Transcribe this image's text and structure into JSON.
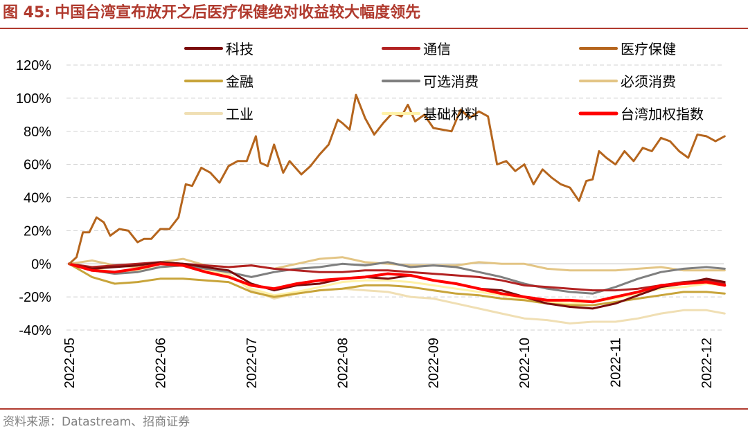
{
  "figure": {
    "label": "图 45:",
    "title": "中国台湾宣布放开之后医疗保健绝对收益较大幅度领先",
    "source": "资料来源：Datastream、招商证券"
  },
  "chart_data": {
    "type": "line",
    "title": "中国台湾宣布放开之后医疗保健绝对收益较大幅度领先",
    "xlabel": "",
    "ylabel": "",
    "ylim": [
      -40,
      120
    ],
    "yticks": [
      -40,
      -20,
      0,
      20,
      40,
      60,
      80,
      100,
      120
    ],
    "ytick_labels": [
      "-40%",
      "-20%",
      "0%",
      "20%",
      "40%",
      "60%",
      "80%",
      "100%",
      "120%"
    ],
    "xlim": [
      0,
      7.3
    ],
    "x_ticks": [
      0,
      1,
      2,
      3,
      4,
      5,
      6,
      7
    ],
    "x_tick_labels": [
      "2022-05",
      "2022-06",
      "2022-07",
      "2022-08",
      "2022-09",
      "2022-10",
      "2022-11",
      "2022-12"
    ],
    "grid": "horizontal-dashed",
    "legend": "top",
    "series": [
      {
        "name": "科技",
        "color": "#7a0c0c",
        "width": 3,
        "x": [
          0,
          0.25,
          0.5,
          0.75,
          1,
          1.25,
          1.5,
          1.75,
          2,
          2.25,
          2.5,
          2.75,
          3,
          3.25,
          3.5,
          3.75,
          4,
          4.25,
          4.5,
          4.75,
          5,
          5.25,
          5.5,
          5.75,
          6,
          6.25,
          6.5,
          6.75,
          7,
          7.2
        ],
        "values": [
          0,
          -3,
          -2,
          -1,
          1,
          0,
          -2,
          -4,
          -12,
          -16,
          -13,
          -12,
          -9,
          -8,
          -9,
          -7,
          -10,
          -12,
          -15,
          -16,
          -20,
          -24,
          -26,
          -27,
          -24,
          -19,
          -14,
          -12,
          -9,
          -11
        ]
      },
      {
        "name": "通信",
        "color": "#b22222",
        "width": 3,
        "x": [
          0,
          0.25,
          0.5,
          0.75,
          1,
          1.25,
          1.5,
          1.75,
          2,
          2.25,
          2.5,
          2.75,
          3,
          3.25,
          3.5,
          3.75,
          4,
          4.25,
          4.5,
          4.75,
          5,
          5.25,
          5.5,
          5.75,
          6,
          6.25,
          6.5,
          6.75,
          7,
          7.2
        ],
        "values": [
          0,
          -2,
          -1,
          0,
          1,
          0,
          -1,
          -2,
          -1,
          -3,
          -4,
          -5,
          -5,
          -4,
          -4,
          -5,
          -6,
          -7,
          -8,
          -10,
          -13,
          -14,
          -15,
          -16,
          -16,
          -15,
          -13,
          -11,
          -10,
          -12
        ]
      },
      {
        "name": "医疗保健",
        "color": "#b5651d",
        "width": 3,
        "x": [
          0,
          0.08,
          0.15,
          0.22,
          0.3,
          0.38,
          0.45,
          0.55,
          0.65,
          0.75,
          0.82,
          0.9,
          1,
          1.1,
          1.2,
          1.28,
          1.35,
          1.45,
          1.55,
          1.65,
          1.75,
          1.85,
          1.95,
          2.05,
          2.1,
          2.18,
          2.25,
          2.35,
          2.42,
          2.55,
          2.65,
          2.75,
          2.85,
          2.95,
          3,
          3.08,
          3.15,
          3.25,
          3.35,
          3.45,
          3.55,
          3.65,
          3.72,
          3.8,
          3.9,
          4,
          4.1,
          4.2,
          4.3,
          4.4,
          4.5,
          4.6,
          4.7,
          4.8,
          4.9,
          5,
          5.1,
          5.2,
          5.3,
          5.4,
          5.5,
          5.6,
          5.68,
          5.75,
          5.82,
          5.9,
          6,
          6.1,
          6.2,
          6.3,
          6.4,
          6.5,
          6.6,
          6.7,
          6.8,
          6.9,
          7,
          7.1,
          7.2
        ],
        "values": [
          0,
          4,
          19,
          19,
          28,
          25,
          17,
          21,
          20,
          13,
          15,
          15,
          21,
          21,
          28,
          48,
          47,
          58,
          55,
          49,
          59,
          62,
          62,
          77,
          61,
          59,
          72,
          55,
          62,
          54,
          59,
          66,
          72,
          87,
          85,
          81,
          102,
          88,
          78,
          85,
          91,
          89,
          96,
          86,
          90,
          82,
          81,
          80,
          93,
          88,
          92,
          89,
          60,
          62,
          56,
          60,
          48,
          57,
          52,
          48,
          46,
          38,
          50,
          51,
          68,
          64,
          60,
          68,
          62,
          70,
          68,
          76,
          74,
          68,
          64,
          78,
          77,
          74,
          77
        ]
      },
      {
        "name": "金融",
        "color": "#c8a43a",
        "width": 3,
        "x": [
          0,
          0.25,
          0.5,
          0.75,
          1,
          1.25,
          1.5,
          1.75,
          2,
          2.25,
          2.5,
          2.75,
          3,
          3.25,
          3.5,
          3.75,
          4,
          4.25,
          4.5,
          4.75,
          5,
          5.25,
          5.5,
          5.75,
          6,
          6.25,
          6.5,
          6.75,
          7,
          7.2
        ],
        "values": [
          0,
          -8,
          -12,
          -11,
          -9,
          -9,
          -10,
          -11,
          -17,
          -20,
          -18,
          -16,
          -15,
          -13,
          -13,
          -14,
          -16,
          -18,
          -19,
          -21,
          -22,
          -24,
          -25,
          -25,
          -23,
          -21,
          -19,
          -17,
          -17,
          -18
        ]
      },
      {
        "name": "可选消费",
        "color": "#7f7f7f",
        "width": 3,
        "x": [
          0,
          0.25,
          0.5,
          0.75,
          1,
          1.25,
          1.5,
          1.75,
          2,
          2.25,
          2.5,
          2.75,
          3,
          3.25,
          3.5,
          3.75,
          4,
          4.25,
          4.5,
          4.75,
          5,
          5.25,
          5.5,
          5.75,
          6,
          6.25,
          6.5,
          6.75,
          7,
          7.2
        ],
        "values": [
          0,
          -4,
          -6,
          -5,
          -2,
          -1,
          -3,
          -5,
          -8,
          -5,
          -3,
          -2,
          0,
          -1,
          1,
          -2,
          -1,
          -2,
          -5,
          -8,
          -12,
          -15,
          -17,
          -18,
          -14,
          -9,
          -5,
          -3,
          -2,
          -3
        ]
      },
      {
        "name": "必须消费",
        "color": "#e3c585",
        "width": 3,
        "x": [
          0,
          0.25,
          0.5,
          0.75,
          1,
          1.25,
          1.5,
          1.75,
          2,
          2.25,
          2.5,
          2.75,
          3,
          3.25,
          3.5,
          3.75,
          4,
          4.25,
          4.5,
          4.75,
          5,
          5.25,
          5.5,
          5.75,
          6,
          6.25,
          6.5,
          6.75,
          7,
          7.2
        ],
        "values": [
          0,
          2,
          -1,
          -2,
          1,
          3,
          -1,
          -2,
          -1,
          -3,
          0,
          3,
          4,
          1,
          0,
          -1,
          -1,
          -1,
          1,
          0,
          0,
          -3,
          -4,
          -4,
          -4,
          -3,
          -2,
          -4,
          -4,
          -4
        ]
      },
      {
        "name": "工业",
        "color": "#f0dfb4",
        "width": 3,
        "x": [
          0,
          0.25,
          0.5,
          0.75,
          1,
          1.25,
          1.5,
          1.75,
          2,
          2.25,
          2.5,
          2.75,
          3,
          3.25,
          3.5,
          3.75,
          4,
          4.25,
          4.5,
          4.75,
          5,
          5.25,
          5.5,
          5.75,
          6,
          6.25,
          6.5,
          6.75,
          7,
          7.2
        ],
        "values": [
          0,
          -2,
          -6,
          -4,
          -2,
          -1,
          -4,
          -6,
          -16,
          -21,
          -18,
          -16,
          -15,
          -16,
          -17,
          -20,
          -21,
          -24,
          -27,
          -30,
          -33,
          -34,
          -36,
          -35,
          -35,
          -33,
          -30,
          -28,
          -28,
          -30
        ]
      },
      {
        "name": "基础材料",
        "color": "#fff2a8",
        "width": 3,
        "x": [
          0,
          0.25,
          0.5,
          0.75,
          1,
          1.25,
          1.5,
          1.75,
          2,
          2.25,
          2.5,
          2.75,
          3,
          3.25,
          3.5,
          3.75,
          4,
          4.25,
          4.5,
          4.75,
          5,
          5.25,
          5.5,
          5.75,
          6,
          6.25,
          6.5,
          6.75,
          7,
          7.2
        ],
        "values": [
          0,
          -3,
          -5,
          -4,
          -2,
          -1,
          -4,
          -7,
          -15,
          -19,
          -17,
          -14,
          -11,
          -10,
          -10,
          -11,
          -13,
          -15,
          -17,
          -19,
          -21,
          -23,
          -24,
          -23,
          -21,
          -18,
          -15,
          -14,
          -12,
          -13
        ]
      },
      {
        "name": "台湾加权指数",
        "color": "#ff0000",
        "width": 4,
        "x": [
          0,
          0.25,
          0.5,
          0.75,
          1,
          1.25,
          1.5,
          1.75,
          2,
          2.25,
          2.5,
          2.75,
          3,
          3.25,
          3.5,
          3.75,
          4,
          4.25,
          4.5,
          4.75,
          5,
          5.25,
          5.5,
          5.75,
          6,
          6.25,
          6.5,
          6.75,
          7,
          7.2
        ],
        "values": [
          0,
          -4,
          -5,
          -3,
          0,
          -1,
          -5,
          -8,
          -13,
          -15,
          -12,
          -10,
          -9,
          -8,
          -6,
          -7,
          -10,
          -12,
          -15,
          -18,
          -20,
          -22,
          -22,
          -23,
          -20,
          -17,
          -13,
          -12,
          -11,
          -13
        ]
      }
    ]
  }
}
